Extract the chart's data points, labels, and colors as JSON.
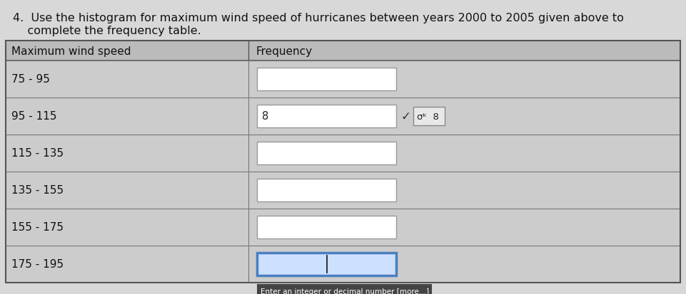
{
  "title_line1": "4.  Use the histogram for maximum wind speed of hurricanes between years 2000 to 2005 given above to",
  "title_line2": "    complete the frequency table.",
  "col1_header": "Maximum wind speed",
  "col2_header": "Frequency",
  "rows": [
    {
      "label": "75 - 95",
      "value": "",
      "answered": false,
      "active": false
    },
    {
      "label": "95 - 115",
      "value": "8",
      "answered": true,
      "active": false
    },
    {
      "label": "115 - 135",
      "value": "",
      "answered": false,
      "active": false
    },
    {
      "label": "135 - 155",
      "value": "",
      "answered": false,
      "active": false
    },
    {
      "label": "155 - 175",
      "value": "",
      "answered": false,
      "active": false
    },
    {
      "label": "175 - 195",
      "value": "",
      "answered": false,
      "active": true
    }
  ],
  "bg_color": "#d8d8d8",
  "table_bg": "#cccccc",
  "row_bg": "#cccccc",
  "input_bg": "#ffffff",
  "active_border": "#4a7fc1",
  "active_fill": "#cce0ff",
  "normal_border": "#999999",
  "text_color": "#111111",
  "footer_text": "Enter an integer or decimal number [more...]",
  "footer_bg": "#444444",
  "footer_text_color": "#ffffff",
  "title_fontsize": 11.5,
  "label_fontsize": 11,
  "header_fontsize": 11
}
